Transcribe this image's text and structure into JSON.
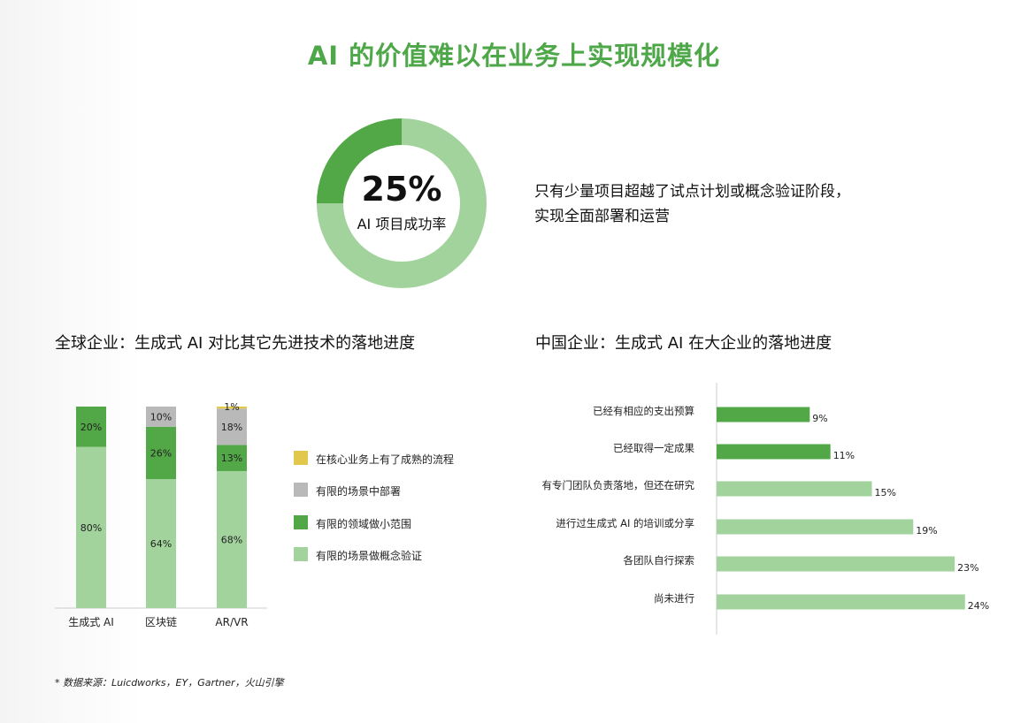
{
  "title": "AI 的价值难以在业务上实现规模化",
  "donut": {
    "value": 25,
    "value_text": "25%",
    "label": "AI 项目成功率",
    "description_line1": "只有少量项目超越了试点计划或概念验证阶段，",
    "description_line2": "实现全面部署和运营",
    "color_main": "#52a747",
    "color_rest": "#a2d39c"
  },
  "global_section": {
    "title": "全球企业：生成式 AI 对比其它先进技术的落地进度"
  },
  "china_section": {
    "title": "中国企业：生成式 AI 在大企业的落地进度"
  },
  "legend": [
    {
      "label": "在核心业务上有了成熟的流程",
      "color": "#e1c84a"
    },
    {
      "label": "有限的场景中部署",
      "color": "#b9b9b9"
    },
    {
      "label": "有限的领域做小范围",
      "color": "#52a747"
    },
    {
      "label": "有限的场景做概念验证",
      "color": "#a2d39c"
    }
  ],
  "source": "* 数据来源：Luicdworks，EY，Gartner，火山引擎",
  "chart_data": [
    {
      "type": "bar",
      "stacked": true,
      "categories": [
        "生成式 AI",
        "区块链",
        "AR/VR"
      ],
      "series": [
        {
          "name": "有限的场景做概念验证",
          "color": "#a2d39c",
          "values": [
            80,
            64,
            68
          ]
        },
        {
          "name": "有限的领域做小范围",
          "color": "#52a747",
          "values": [
            20,
            26,
            13
          ]
        },
        {
          "name": "有限的场景中部署",
          "color": "#b9b9b9",
          "values": [
            0,
            10,
            18
          ]
        },
        {
          "name": "在核心业务上有了成熟的流程",
          "color": "#e1c84a",
          "values": [
            0,
            0,
            1
          ]
        }
      ],
      "unit": "%",
      "ylim": [
        0,
        100
      ],
      "legend_position": "right"
    },
    {
      "type": "bar",
      "orientation": "horizontal",
      "categories": [
        "已经有相应的支出预算",
        "已经取得一定成果",
        "有专门团队负责落地，但还在研究",
        "进行过生成式 AI 的培训或分享",
        "各团队自行探索",
        "尚未进行"
      ],
      "values": [
        9,
        11,
        15,
        19,
        23,
        24
      ],
      "colors": [
        "#52a747",
        "#52a747",
        "#a2d39c",
        "#a2d39c",
        "#a2d39c",
        "#a2d39c"
      ],
      "unit": "%"
    }
  ]
}
